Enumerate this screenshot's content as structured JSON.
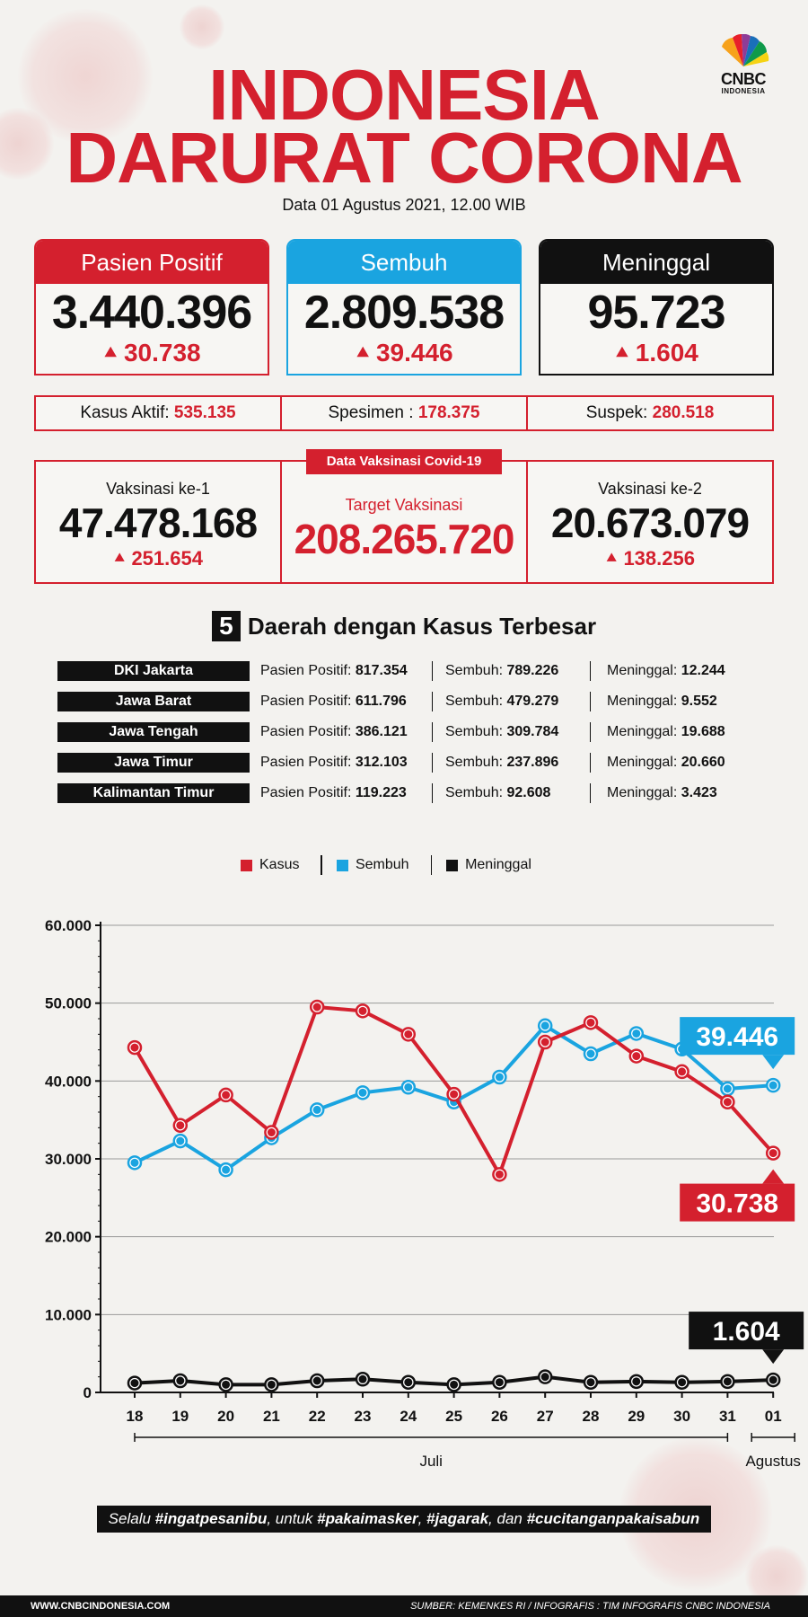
{
  "brand": {
    "name": "CNBC",
    "sub": "INDONESIA"
  },
  "title_line1": "INDONESIA",
  "title_line2": "DARURAT CORONA",
  "date": "Data 01 Agustus 2021, 12.00 WIB",
  "stats": [
    {
      "label": "Pasien Positif",
      "value": "3.440.396",
      "delta": "30.738",
      "color": "#d4202e"
    },
    {
      "label": "Sembuh",
      "value": "2.809.538",
      "delta": "39.446",
      "color": "#1aa4e0"
    },
    {
      "label": "Meninggal",
      "value": "95.723",
      "delta": "1.604",
      "color": "#111111"
    }
  ],
  "summary": [
    {
      "label": "Kasus Aktif: ",
      "value": "535.135"
    },
    {
      "label": "Spesimen : ",
      "value": "178.375"
    },
    {
      "label": "Suspek: ",
      "value": "280.518"
    }
  ],
  "vaccination": {
    "tag": "Data Vaksinasi Covid-19",
    "dose1": {
      "label": "Vaksinasi ke-1",
      "value": "47.478.168",
      "delta": "251.654"
    },
    "target": {
      "label": "Target Vaksinasi",
      "value": "208.265.720"
    },
    "dose2": {
      "label": "Vaksinasi ke-2",
      "value": "20.673.079",
      "delta": "138.256"
    }
  },
  "top5": {
    "number": "5",
    "title": "Daerah dengan Kasus Terbesar",
    "pos_label": "Pasien Positif: ",
    "rec_label": "Sembuh: ",
    "death_label": "Meninggal: ",
    "rows": [
      {
        "province": "DKI Jakarta",
        "positif": "817.354",
        "sembuh": "789.226",
        "meninggal": "12.244"
      },
      {
        "province": "Jawa Barat",
        "positif": "611.796",
        "sembuh": "479.279",
        "meninggal": "9.552"
      },
      {
        "province": "Jawa Tengah",
        "positif": "386.121",
        "sembuh": "309.784",
        "meninggal": "19.688"
      },
      {
        "province": "Jawa Timur",
        "positif": "312.103",
        "sembuh": "237.896",
        "meninggal": "20.660"
      },
      {
        "province": "Kalimantan Timur",
        "positif": "119.223",
        "sembuh": "92.608",
        "meninggal": "3.423"
      }
    ]
  },
  "chart_data": {
    "type": "line",
    "x": [
      "18",
      "19",
      "20",
      "21",
      "22",
      "23",
      "24",
      "25",
      "26",
      "27",
      "28",
      "29",
      "30",
      "31",
      "01"
    ],
    "month_labels": [
      "Juli",
      "Agustus"
    ],
    "yticks": [
      "0",
      "10.000",
      "20.000",
      "30.000",
      "40.000",
      "50.000",
      "60.000"
    ],
    "ylim": [
      0,
      60000
    ],
    "grid": true,
    "legend_position": "top-center",
    "series": [
      {
        "name": "Kasus",
        "color": "#d4202e",
        "values": [
          44300,
          34300,
          38200,
          33400,
          49500,
          49000,
          46000,
          38300,
          28000,
          45000,
          47500,
          43200,
          41200,
          37300,
          30738
        ]
      },
      {
        "name": "Sembuh",
        "color": "#1aa4e0",
        "values": [
          29500,
          32300,
          28600,
          32700,
          36300,
          38500,
          39200,
          37300,
          40500,
          47100,
          43500,
          46100,
          44100,
          39000,
          39446
        ]
      },
      {
        "name": "Meninggal",
        "color": "#111111",
        "values": [
          1200,
          1500,
          1000,
          1000,
          1500,
          1700,
          1300,
          1000,
          1300,
          2000,
          1300,
          1400,
          1300,
          1400,
          1604
        ]
      }
    ],
    "callouts": [
      {
        "series": "Sembuh",
        "text": "39.446"
      },
      {
        "series": "Kasus",
        "text": "30.738"
      },
      {
        "series": "Meninggal",
        "text": "1.604"
      }
    ]
  },
  "footer": {
    "banner_parts": [
      "Selalu ",
      "#ingatpesanibu",
      ", untuk ",
      "#pakaimasker",
      ", ",
      "#jagarak",
      ", dan ",
      "#cucitanganpakaisabun"
    ],
    "website": "WWW.CNBCINDONESIA.COM",
    "source": "SUMBER: KEMENKES RI / INFOGRAFIS : TIM INFOGRAFIS CNBC INDONESIA"
  }
}
